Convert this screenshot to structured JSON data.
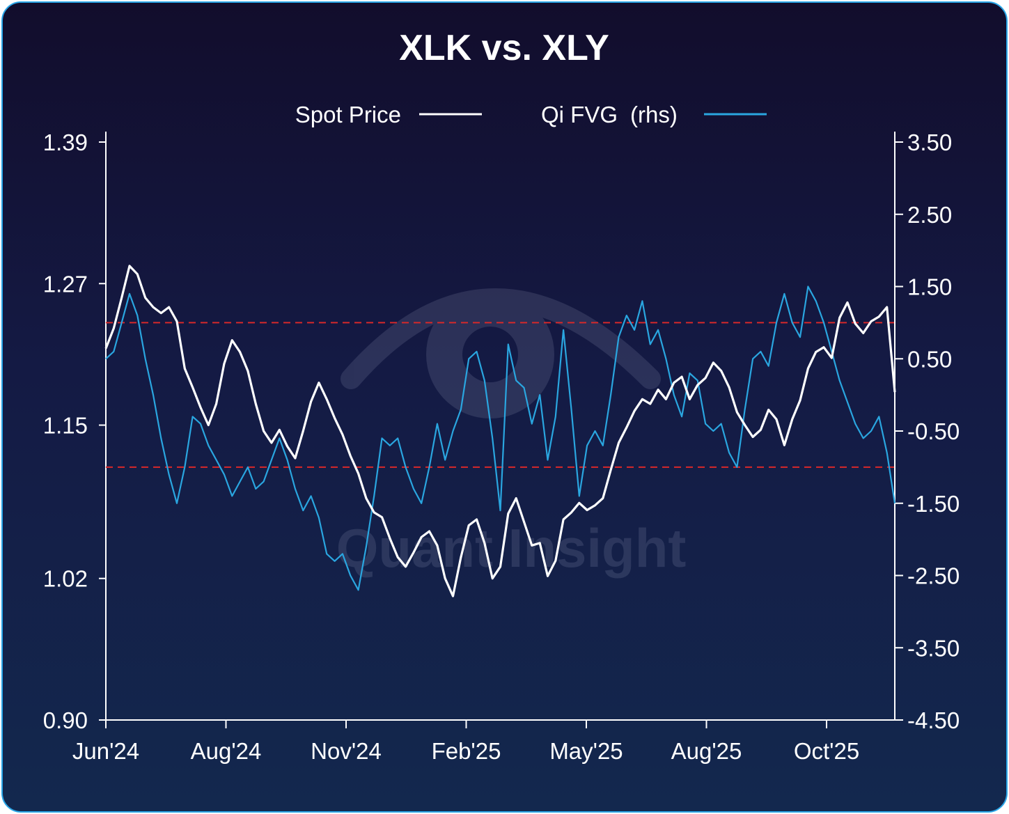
{
  "chart_data": {
    "type": "line",
    "title": "XLK vs. XLY",
    "x_ticks": [
      "Jun'24",
      "Aug'24",
      "Nov'24",
      "Feb'25",
      "May'25",
      "Aug'25",
      "Oct'25"
    ],
    "y_left": {
      "min": 0.9,
      "max": 1.39,
      "ticks": [
        "1.39",
        "1.27",
        "1.15",
        "1.02",
        "0.90"
      ]
    },
    "y_right": {
      "min": -4.5,
      "max": 3.5,
      "label": "(rhs)",
      "ticks": [
        "3.50",
        "2.50",
        "1.50",
        "0.50",
        "-0.50",
        "-1.50",
        "-2.50",
        "-3.50",
        "-4.50"
      ]
    },
    "reference_lines": {
      "axis": "right",
      "values": [
        1.0,
        -1.0
      ],
      "color": "#d8282a",
      "style": "dashed"
    },
    "series": [
      {
        "name": "Spot Price",
        "axis": "left",
        "color": "#ffffff",
        "x": [
          0.0,
          0.01,
          0.02,
          0.03,
          0.04,
          0.05,
          0.06,
          0.07,
          0.08,
          0.09,
          0.1,
          0.11,
          0.12,
          0.13,
          0.14,
          0.15,
          0.16,
          0.17,
          0.18,
          0.19,
          0.2,
          0.21,
          0.22,
          0.23,
          0.24,
          0.25,
          0.26,
          0.27,
          0.28,
          0.29,
          0.3,
          0.31,
          0.32,
          0.33,
          0.34,
          0.35,
          0.36,
          0.37,
          0.38,
          0.39,
          0.4,
          0.41,
          0.42,
          0.43,
          0.44,
          0.45,
          0.46,
          0.47,
          0.48,
          0.49,
          0.5,
          0.51,
          0.52,
          0.53,
          0.54,
          0.55,
          0.56,
          0.57,
          0.58,
          0.59,
          0.6,
          0.61,
          0.62,
          0.63,
          0.64,
          0.65,
          0.66,
          0.67,
          0.68,
          0.69,
          0.7,
          0.71,
          0.72,
          0.73,
          0.74,
          0.75,
          0.76,
          0.77,
          0.78,
          0.79,
          0.8,
          0.81,
          0.82,
          0.83,
          0.84,
          0.85,
          0.86,
          0.87,
          0.88,
          0.89,
          0.9,
          0.91,
          0.92,
          0.93,
          0.94,
          0.95,
          0.96,
          0.97,
          0.98,
          0.99,
          1.0
        ],
        "values": [
          1.215,
          1.232,
          1.258,
          1.285,
          1.278,
          1.258,
          1.25,
          1.245,
          1.25,
          1.238,
          1.198,
          1.182,
          1.165,
          1.15,
          1.168,
          1.202,
          1.222,
          1.212,
          1.196,
          1.168,
          1.145,
          1.135,
          1.146,
          1.132,
          1.122,
          1.145,
          1.17,
          1.186,
          1.172,
          1.156,
          1.142,
          1.124,
          1.109,
          1.088,
          1.076,
          1.072,
          1.054,
          1.038,
          1.03,
          1.042,
          1.055,
          1.06,
          1.048,
          1.02,
          1.005,
          1.038,
          1.065,
          1.07,
          1.05,
          1.02,
          1.03,
          1.075,
          1.088,
          1.068,
          1.048,
          1.05,
          1.022,
          1.035,
          1.07,
          1.076,
          1.084,
          1.078,
          1.082,
          1.088,
          1.112,
          1.135,
          1.148,
          1.162,
          1.172,
          1.168,
          1.18,
          1.172,
          1.186,
          1.191,
          1.172,
          1.184,
          1.19,
          1.203,
          1.196,
          1.182,
          1.161,
          1.15,
          1.14,
          1.146,
          1.163,
          1.155,
          1.133,
          1.155,
          1.171,
          1.198,
          1.212,
          1.216,
          1.207,
          1.241,
          1.254,
          1.236,
          1.228,
          1.238,
          1.242,
          1.25,
          1.178
        ]
      },
      {
        "name": "Qi FVG",
        "axis": "right",
        "color": "#2aa6e0",
        "x": [
          0.0,
          0.01,
          0.02,
          0.03,
          0.04,
          0.05,
          0.06,
          0.07,
          0.08,
          0.09,
          0.1,
          0.11,
          0.12,
          0.13,
          0.14,
          0.15,
          0.16,
          0.17,
          0.18,
          0.19,
          0.2,
          0.21,
          0.22,
          0.23,
          0.24,
          0.25,
          0.26,
          0.27,
          0.28,
          0.29,
          0.3,
          0.31,
          0.32,
          0.33,
          0.34,
          0.35,
          0.36,
          0.37,
          0.38,
          0.39,
          0.4,
          0.41,
          0.42,
          0.43,
          0.44,
          0.45,
          0.46,
          0.47,
          0.48,
          0.49,
          0.5,
          0.51,
          0.52,
          0.53,
          0.54,
          0.55,
          0.56,
          0.57,
          0.58,
          0.59,
          0.6,
          0.61,
          0.62,
          0.63,
          0.64,
          0.65,
          0.66,
          0.67,
          0.68,
          0.69,
          0.7,
          0.71,
          0.72,
          0.73,
          0.74,
          0.75,
          0.76,
          0.77,
          0.78,
          0.79,
          0.8,
          0.81,
          0.82,
          0.83,
          0.84,
          0.85,
          0.86,
          0.87,
          0.88,
          0.89,
          0.9,
          0.91,
          0.92,
          0.93,
          0.94,
          0.95,
          0.96,
          0.97,
          0.98,
          0.99,
          1.0
        ],
        "values": [
          0.5,
          0.6,
          1.0,
          1.4,
          1.1,
          0.5,
          0.0,
          -0.6,
          -1.1,
          -1.5,
          -1.0,
          -0.3,
          -0.4,
          -0.7,
          -0.9,
          -1.1,
          -1.4,
          -1.2,
          -1.0,
          -1.3,
          -1.2,
          -0.9,
          -0.6,
          -0.9,
          -1.3,
          -1.6,
          -1.4,
          -1.7,
          -2.2,
          -2.3,
          -2.2,
          -2.5,
          -2.7,
          -2.1,
          -1.4,
          -0.6,
          -0.7,
          -0.6,
          -1.0,
          -1.3,
          -1.5,
          -1.0,
          -0.4,
          -0.9,
          -0.5,
          -0.2,
          0.5,
          0.6,
          0.2,
          -0.6,
          -1.6,
          0.7,
          0.2,
          0.1,
          -0.4,
          0.0,
          -0.9,
          -0.3,
          0.9,
          -0.2,
          -1.4,
          -0.7,
          -0.5,
          -0.7,
          0.0,
          0.8,
          1.1,
          0.9,
          1.3,
          0.7,
          0.9,
          0.5,
          0.0,
          -0.3,
          0.3,
          0.2,
          -0.4,
          -0.5,
          -0.4,
          -0.8,
          -1.0,
          -0.2,
          0.5,
          0.6,
          0.4,
          1.0,
          1.4,
          1.0,
          0.8,
          1.5,
          1.3,
          1.0,
          0.6,
          0.2,
          -0.1,
          -0.4,
          -0.6,
          -0.5,
          -0.3,
          -0.8,
          -1.5
        ]
      }
    ],
    "legend_position": "top-center",
    "grid": false,
    "watermark": "Quant Insight"
  }
}
